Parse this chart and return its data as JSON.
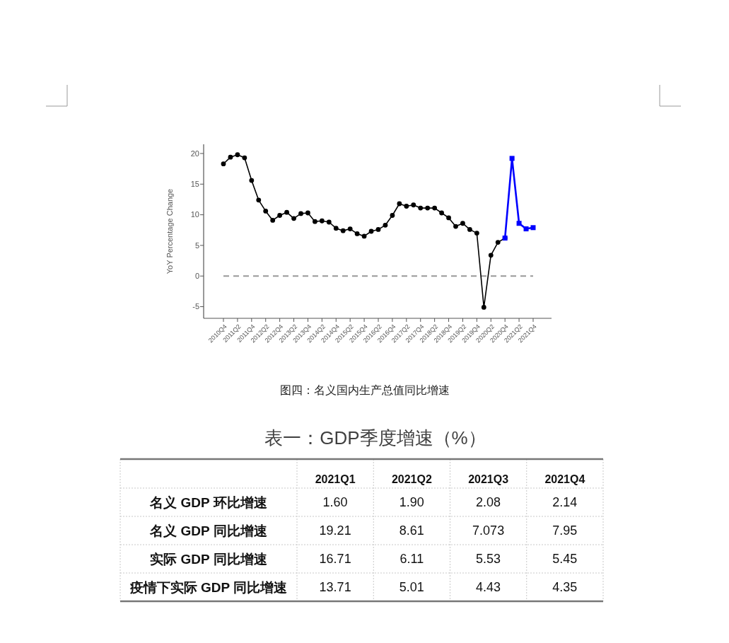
{
  "chart_data": [
    {
      "type": "line",
      "title": "图四：名义国内生产总值同比增速",
      "ylabel": "YoY Percentage Change",
      "categories": [
        "2010Q4",
        null,
        "2011Q2",
        null,
        "2011Q4",
        null,
        "2012Q2",
        null,
        "2012Q4",
        null,
        "2013Q2",
        null,
        "2013Q4",
        null,
        "2014Q2",
        null,
        "2014Q4",
        null,
        "2015Q2",
        null,
        "2015Q4",
        null,
        "2016Q2",
        null,
        "2016Q4",
        null,
        "2017Q2",
        null,
        "2017Q4",
        null,
        "2018Q2",
        null,
        "2018Q4",
        null,
        "2019Q2",
        null,
        "2019Q4",
        null,
        "2020Q2",
        null,
        "2020Q4",
        null,
        "2021Q2",
        null,
        "2021Q4"
      ],
      "series": [
        {
          "color": "#000000",
          "marker": "circle",
          "values": [
            18.3,
            19.4,
            19.8,
            19.3,
            15.6,
            12.4,
            10.6,
            9.1,
            9.9,
            10.4,
            9.4,
            10.2,
            10.3,
            8.9,
            9.0,
            8.8,
            7.8,
            7.4,
            7.7,
            6.9,
            6.5,
            7.3,
            7.6,
            8.3,
            9.9,
            11.8,
            11.4,
            11.6,
            11.1,
            11.1,
            11.1,
            10.3,
            9.5,
            8.1,
            8.6,
            7.6,
            7.0,
            -5.1,
            3.4,
            5.5,
            6.2,
            null,
            null,
            null,
            null
          ]
        },
        {
          "color": "#0000ff",
          "marker": "square",
          "values": [
            null,
            null,
            null,
            null,
            null,
            null,
            null,
            null,
            null,
            null,
            null,
            null,
            null,
            null,
            null,
            null,
            null,
            null,
            null,
            null,
            null,
            null,
            null,
            null,
            null,
            null,
            null,
            null,
            null,
            null,
            null,
            null,
            null,
            null,
            null,
            null,
            null,
            null,
            null,
            null,
            6.2,
            19.2,
            8.6,
            7.7,
            7.9
          ]
        }
      ],
      "ylim": [
        -6.9,
        21.5
      ],
      "yticks": [
        -5,
        0,
        5,
        10,
        15,
        20
      ],
      "ref_lines": [
        {
          "axis": "y",
          "value": 0,
          "color": "#999999",
          "line_style": "dashed"
        }
      ]
    },
    {
      "type": "other",
      "title": "表一：GDP季度增速（%）",
      "categories": [
        "2021Q1",
        "2021Q2",
        "2021Q3",
        "2021Q4"
      ],
      "series": [
        {
          "name": "名义 GDP 环比增速",
          "values": [
            1.6,
            1.9,
            2.08,
            2.14
          ],
          "value_labels": [
            "1.60",
            "1.90",
            "2.08",
            "2.14"
          ]
        },
        {
          "name": "名义 GDP 同比增速",
          "values": [
            19.21,
            8.61,
            7.073,
            7.95
          ],
          "value_labels": [
            "19.21",
            "8.61",
            "7.073",
            "7.95"
          ]
        },
        {
          "name": "实际 GDP 同比增速",
          "values": [
            16.71,
            6.11,
            5.53,
            5.45
          ],
          "value_labels": [
            "16.71",
            "6.11",
            "5.53",
            "5.45"
          ]
        },
        {
          "name": "疫情下实际 GDP 同比增速",
          "values": [
            13.71,
            5.01,
            4.43,
            4.35
          ],
          "value_labels": [
            "13.71",
            "5.01",
            "4.43",
            "4.35"
          ]
        }
      ]
    }
  ]
}
